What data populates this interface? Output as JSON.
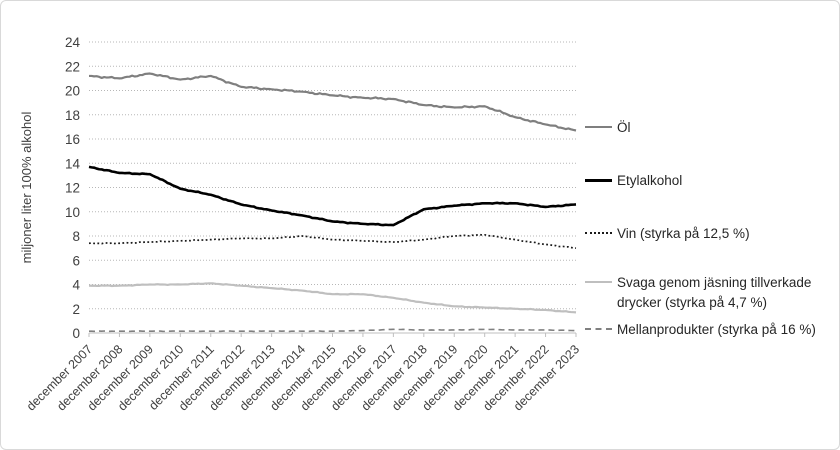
{
  "chart_data": {
    "type": "line",
    "title": "",
    "xlabel": "",
    "ylabel": "miljoner liter 100% alkohol",
    "ylim": [
      0,
      24
    ],
    "ytick_step": 2,
    "grid": "horizontal dotted light-gray",
    "legend_position": "right",
    "x_granularity": "monthly series; values listed at each december tick",
    "categories": [
      "december 2007",
      "december 2008",
      "december 2009",
      "december 2010",
      "december 2011",
      "december 2012",
      "december 2013",
      "december 2014",
      "december 2015",
      "december 2016",
      "december 2017",
      "december 2018",
      "december 2019",
      "december 2020",
      "december 2021",
      "december 2022",
      "december 2023"
    ],
    "series": [
      {
        "name": "Öl",
        "color": "#7f7f7f",
        "line_style": "solid",
        "line_width": 2.2,
        "values": [
          21.2,
          21.0,
          21.4,
          20.9,
          21.2,
          20.3,
          20.1,
          19.9,
          19.6,
          19.4,
          19.3,
          18.8,
          18.6,
          18.7,
          17.8,
          17.2,
          16.7
        ]
      },
      {
        "name": "Etylalkohol",
        "color": "#000000",
        "line_style": "solid",
        "line_width": 2.6,
        "values": [
          13.7,
          13.2,
          13.1,
          11.9,
          11.4,
          10.6,
          10.1,
          9.7,
          9.2,
          9.0,
          8.9,
          10.2,
          10.5,
          10.7,
          10.7,
          10.4,
          10.6
        ]
      },
      {
        "name": "Vin (styrka på 12,5 %)",
        "color": "#1a1a1a",
        "line_style": "dotted",
        "line_width": 1.7,
        "values": [
          7.4,
          7.4,
          7.5,
          7.6,
          7.7,
          7.8,
          7.8,
          8.0,
          7.7,
          7.6,
          7.5,
          7.7,
          8.0,
          8.1,
          7.7,
          7.3,
          7.0
        ]
      },
      {
        "name": "Svaga genom jäsning tillverkade drycker (styrka på 4,7 %)",
        "color": "#bfbfbf",
        "line_style": "solid",
        "line_width": 2.2,
        "values": [
          3.9,
          3.9,
          4.0,
          4.0,
          4.1,
          3.9,
          3.7,
          3.5,
          3.2,
          3.2,
          2.9,
          2.5,
          2.2,
          2.1,
          2.0,
          1.9,
          1.7
        ]
      },
      {
        "name": "Mellanprodukter (styrka på 16 %)",
        "color": "#808080",
        "line_style": "dashed",
        "line_width": 1.6,
        "values": [
          0.15,
          0.15,
          0.15,
          0.15,
          0.15,
          0.15,
          0.15,
          0.15,
          0.15,
          0.2,
          0.3,
          0.25,
          0.25,
          0.3,
          0.25,
          0.25,
          0.2
        ]
      }
    ],
    "axis_colors": {
      "tick_label": "#404040",
      "axis_line": "#bfbfbf",
      "gridline": "#b7b7b7"
    }
  }
}
